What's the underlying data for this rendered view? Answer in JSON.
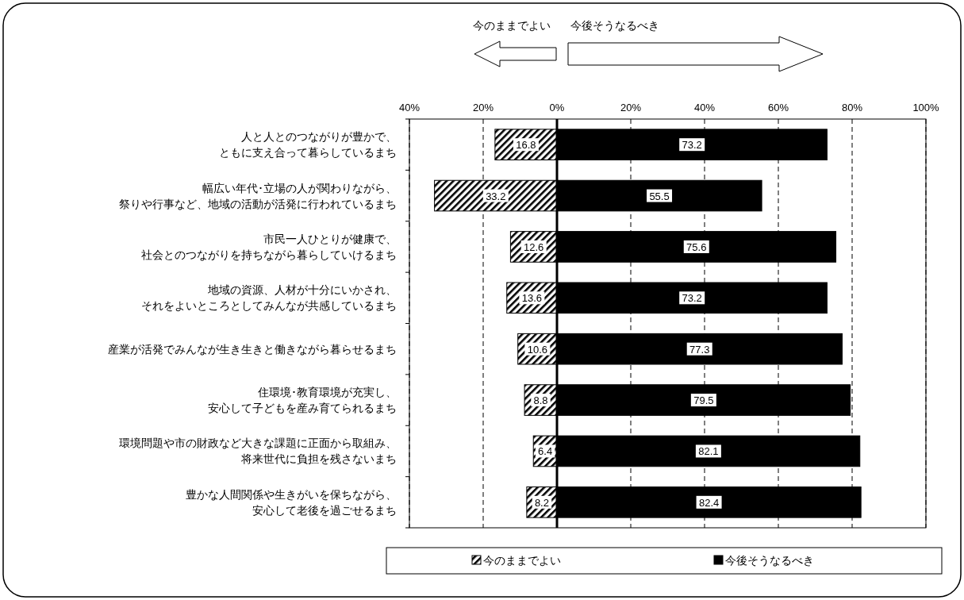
{
  "chart_data": {
    "type": "bar",
    "orientation": "horizontal",
    "categories": [
      "人と人とのつながりが豊かで、ともに支え合って暮らしているまち",
      "幅広い年代･立場の人が関わりながら、祭りや行事など、地域の活動が活発に行われているまち",
      "市民一人ひとりが健康で、社会とのつながりを持ちながら暮らしていけるまち",
      "地域の資源、人材が十分にいかされ、それをよいところとしてみんなが共感しているまち",
      "産業が活発でみんなが生き生きと働きながら暮らせるまち",
      "住環境･教育環境が充実し、安心して子どもを産み育てられるまち",
      "環境問題や市の財政など大きな課題に正面から取組み、将来世代に負担を残さないまち",
      "豊かな人間関係や生きがいを保ちながら、安心して老後を過ごせるまち"
    ],
    "series": [
      {
        "name": "今のままでよい",
        "color": "#000000",
        "values": [
          16.8,
          33.2,
          12.6,
          13.6,
          10.6,
          8.8,
          6.4,
          8.2
        ],
        "base": [
          -16.8,
          -33.2,
          -12.6,
          -13.6,
          -10.6,
          -8.8,
          -6.4,
          -8.2
        ]
      },
      {
        "name": "今後そうなるべき",
        "color": "#000000",
        "values": [
          73.2,
          55.5,
          75.6,
          73.2,
          77.3,
          79.5,
          82.1,
          82.4
        ]
      }
    ],
    "data_labels": true,
    "xlim": [
      -40,
      100
    ],
    "xticks": [
      {
        "value": -40,
        "label": "40%"
      },
      {
        "value": -20,
        "label": "20%"
      },
      {
        "value": 0,
        "label": "0%"
      },
      {
        "value": 20,
        "label": "20%"
      },
      {
        "value": 40,
        "label": "40%"
      },
      {
        "value": 60,
        "label": "60%"
      },
      {
        "value": 80,
        "label": "80%"
      },
      {
        "value": 100,
        "label": "100%"
      }
    ],
    "grid": "x",
    "legend": "bottom",
    "annotations": [
      "今のままでよい",
      "今後そうなるべき"
    ]
  }
}
